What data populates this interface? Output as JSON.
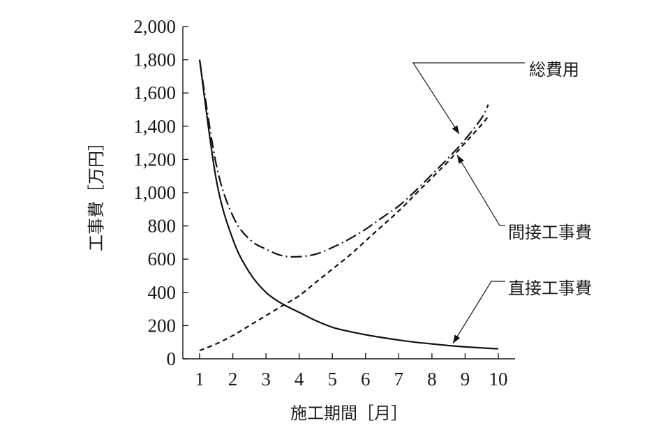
{
  "chart_data": {
    "type": "line",
    "title": "",
    "xlabel": "施工期間［月］",
    "ylabel": "工事費［万円］",
    "xlim": [
      1,
      10
    ],
    "ylim": [
      0,
      2000
    ],
    "x_ticks": [
      1,
      2,
      3,
      4,
      5,
      6,
      7,
      8,
      9,
      10
    ],
    "x_tick_labels": [
      "1",
      "2",
      "3",
      "4",
      "5",
      "6",
      "7",
      "8",
      "9",
      "10"
    ],
    "y_ticks": [
      0,
      200,
      400,
      600,
      800,
      1000,
      1200,
      1400,
      1600,
      1800,
      2000
    ],
    "y_tick_labels": [
      "0",
      "200",
      "400",
      "600",
      "800",
      "1,000",
      "1,200",
      "1,400",
      "1,600",
      "1,800",
      "2,000"
    ],
    "grid": false,
    "legend": "none",
    "series": [
      {
        "name": "直接工事費",
        "style": "solid",
        "x": [
          1,
          1.5,
          2,
          2.5,
          3,
          3.5,
          4,
          4.5,
          5,
          5.5,
          6,
          6.5,
          7,
          7.5,
          8,
          8.5,
          9,
          9.5,
          10
        ],
        "y": [
          1800,
          1080,
          720,
          520,
          400,
          330,
          280,
          230,
          190,
          165,
          145,
          128,
          113,
          100,
          90,
          80,
          72,
          66,
          60
        ]
      },
      {
        "name": "間接工事費",
        "style": "dashed",
        "x": [
          1,
          1.5,
          2,
          2.5,
          3,
          3.5,
          4,
          4.5,
          5,
          5.5,
          6,
          6.5,
          7,
          7.5,
          8,
          8.5,
          9,
          9.5,
          9.7
        ],
        "y": [
          50,
          90,
          140,
          200,
          260,
          320,
          380,
          460,
          540,
          620,
          710,
          800,
          890,
          990,
          1090,
          1190,
          1300,
          1410,
          1460
        ]
      },
      {
        "name": "総費用",
        "style": "dash-dot",
        "x": [
          1,
          1.5,
          2,
          2.5,
          3,
          3.5,
          4,
          4.5,
          5,
          5.5,
          6,
          6.5,
          7,
          7.5,
          8,
          8.5,
          9,
          9.5,
          9.7
        ],
        "y": [
          1800,
          1170,
          860,
          720,
          660,
          620,
          615,
          630,
          670,
          720,
          780,
          850,
          920,
          1010,
          1110,
          1210,
          1320,
          1450,
          1530
        ]
      }
    ],
    "annotations": [
      {
        "text": "総費用",
        "series": "総費用"
      },
      {
        "text": "間接工事費",
        "series": "間接工事費"
      },
      {
        "text": "直接工事費",
        "series": "直接工事費"
      }
    ]
  }
}
